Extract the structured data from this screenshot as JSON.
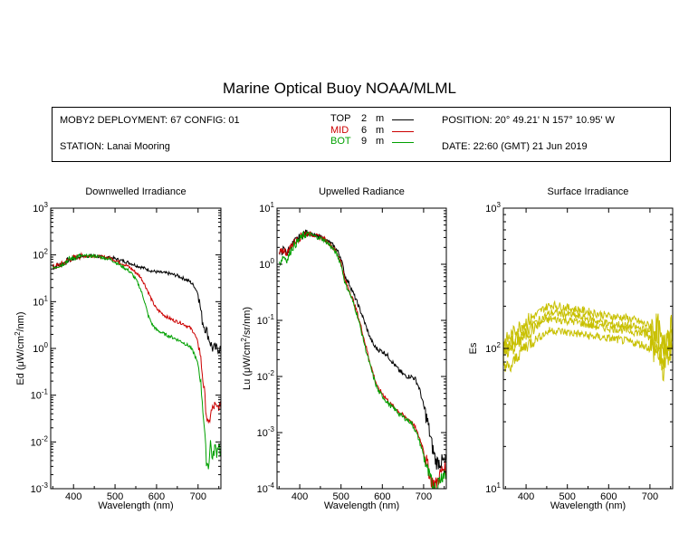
{
  "title": "Marine Optical Buoy NOAA/MLML",
  "info": {
    "deployment": "MOBY2 DEPLOYMENT: 67 CONFIG: 01",
    "station": "STATION: Lanai Mooring",
    "position": "POSITION: 20° 49.21' N   157° 10.95' W",
    "date": "DATE: 22:60 (GMT) 21 Jun 2019",
    "legend": [
      {
        "name": "TOP",
        "depth": "2",
        "unit": "m",
        "color": "#000000"
      },
      {
        "name": "MID",
        "depth": "6",
        "unit": "m",
        "color": "#cc0000"
      },
      {
        "name": "BOT",
        "depth": "9",
        "unit": "m",
        "color": "#00a000"
      }
    ]
  },
  "chart_data": [
    {
      "type": "line",
      "title": "Downwelled Irradiance",
      "xlabel": "Wavelength (nm)",
      "ylabel_prefix": "Ed  (μW/cm",
      "ylabel_suffix": "/nm)",
      "xlim": [
        345,
        755
      ],
      "xticks": [
        400,
        500,
        600,
        700
      ],
      "ylog": true,
      "ylim_exp": [
        -3,
        3
      ],
      "ytick_exps": [
        -3,
        -2,
        -1,
        0,
        1,
        2,
        3
      ],
      "series": [
        {
          "color": "#000000",
          "noise": 0.07,
          "x": [
            350,
            370,
            390,
            410,
            430,
            450,
            470,
            490,
            510,
            530,
            550,
            570,
            590,
            610,
            630,
            650,
            670,
            680,
            690,
            700,
            705,
            710,
            715,
            720,
            725,
            730,
            735,
            740,
            745,
            750,
            755
          ],
          "y": [
            55,
            62,
            80,
            92,
            95,
            95,
            90,
            88,
            78,
            70,
            60,
            52,
            45,
            42,
            40,
            36,
            30,
            27,
            22,
            15,
            8,
            4,
            3,
            2.5,
            1.8,
            1.3,
            1.0,
            1.0,
            1.0,
            1.0,
            1.0
          ]
        },
        {
          "color": "#cc0000",
          "noise": 0.07,
          "x": [
            350,
            370,
            390,
            410,
            430,
            450,
            470,
            490,
            510,
            530,
            540,
            550,
            560,
            570,
            580,
            590,
            600,
            620,
            640,
            660,
            680,
            690,
            700,
            705,
            710,
            715,
            720,
            725,
            730,
            735,
            740,
            745,
            750,
            755
          ],
          "y": [
            55,
            62,
            80,
            92,
            95,
            95,
            90,
            85,
            70,
            58,
            50,
            42,
            35,
            25,
            16,
            10,
            7,
            5,
            4,
            3.5,
            2.8,
            2.2,
            1.3,
            0.8,
            0.3,
            0.12,
            0.04,
            0.02,
            0.04,
            0.05,
            0.06,
            0.05,
            0.06,
            0.05
          ]
        },
        {
          "color": "#00a000",
          "noise": 0.07,
          "x": [
            350,
            370,
            390,
            410,
            430,
            450,
            470,
            490,
            510,
            530,
            540,
            550,
            560,
            570,
            580,
            590,
            600,
            620,
            640,
            660,
            680,
            690,
            700,
            705,
            710,
            715,
            720,
            725,
            730,
            735,
            740,
            745,
            750,
            755
          ],
          "y": [
            55,
            62,
            80,
            92,
            95,
            95,
            88,
            80,
            62,
            48,
            40,
            30,
            20,
            11,
            5,
            3.2,
            2.5,
            2.0,
            1.7,
            1.4,
            1.1,
            0.8,
            0.45,
            0.25,
            0.08,
            0.02,
            0.004,
            0.003,
            0.01,
            0.004,
            0.008,
            0.006,
            0.01,
            0.005
          ]
        }
      ]
    },
    {
      "type": "line",
      "title": "Upwelled Radiance",
      "xlabel": "Wavelength (nm)",
      "ylabel_prefix": "Lu  (μW/cm",
      "ylabel_suffix": "/sr/nm)",
      "xlim": [
        345,
        755
      ],
      "xticks": [
        400,
        500,
        600,
        700
      ],
      "ylog": true,
      "ylim_exp": [
        -4,
        1
      ],
      "ytick_exps": [
        -4,
        -3,
        -2,
        -1,
        0,
        1
      ],
      "series": [
        {
          "color": "#000000",
          "noise": 0.08,
          "x": [
            350,
            360,
            370,
            380,
            390,
            400,
            410,
            420,
            430,
            440,
            450,
            460,
            470,
            480,
            490,
            500,
            510,
            520,
            530,
            540,
            550,
            560,
            570,
            580,
            590,
            600,
            610,
            620,
            630,
            640,
            650,
            660,
            670,
            680,
            690,
            700,
            710,
            720,
            730,
            740,
            750,
            755
          ],
          "y": [
            1.5,
            1.8,
            1.6,
            2.2,
            2.6,
            3.0,
            3.5,
            3.6,
            3.4,
            3.2,
            3.0,
            2.8,
            2.5,
            2.2,
            1.8,
            1.3,
            0.6,
            0.45,
            0.3,
            0.2,
            0.13,
            0.08,
            0.05,
            0.035,
            0.03,
            0.028,
            0.025,
            0.02,
            0.016,
            0.013,
            0.011,
            0.01,
            0.01,
            0.009,
            0.006,
            0.003,
            0.0015,
            0.0006,
            0.0003,
            0.0003,
            0.0003,
            0.0003
          ]
        },
        {
          "color": "#cc0000",
          "noise": 0.08,
          "x": [
            350,
            360,
            370,
            380,
            390,
            400,
            410,
            420,
            430,
            440,
            450,
            460,
            470,
            480,
            490,
            500,
            510,
            520,
            530,
            540,
            550,
            560,
            570,
            580,
            590,
            600,
            610,
            620,
            630,
            640,
            650,
            660,
            670,
            680,
            690,
            700,
            710,
            720,
            730,
            740,
            750,
            755
          ],
          "y": [
            1.5,
            1.8,
            1.6,
            2.2,
            2.6,
            3.0,
            3.5,
            3.6,
            3.4,
            3.2,
            3.0,
            2.8,
            2.4,
            2.0,
            1.6,
            1.1,
            0.5,
            0.35,
            0.22,
            0.13,
            0.07,
            0.035,
            0.018,
            0.01,
            0.006,
            0.005,
            0.004,
            0.0032,
            0.0028,
            0.0024,
            0.002,
            0.0018,
            0.0016,
            0.0012,
            0.0008,
            0.0005,
            0.00025,
            0.00013,
            0.00012,
            0.00018,
            0.00025,
            0.00018
          ]
        },
        {
          "color": "#00a000",
          "noise": 0.08,
          "x": [
            350,
            360,
            370,
            380,
            390,
            400,
            410,
            420,
            430,
            440,
            450,
            460,
            470,
            480,
            490,
            500,
            510,
            520,
            530,
            540,
            550,
            560,
            570,
            580,
            590,
            600,
            610,
            620,
            630,
            640,
            650,
            660,
            670,
            680,
            690,
            700,
            710,
            720,
            730,
            740,
            750,
            755
          ],
          "y": [
            1.0,
            1.4,
            1.2,
            1.9,
            2.3,
            2.8,
            3.3,
            3.5,
            3.3,
            3.1,
            2.9,
            2.7,
            2.3,
            1.9,
            1.5,
            1.0,
            0.45,
            0.32,
            0.2,
            0.12,
            0.06,
            0.03,
            0.016,
            0.009,
            0.0055,
            0.0045,
            0.0036,
            0.003,
            0.0026,
            0.0022,
            0.0019,
            0.0017,
            0.0015,
            0.0011,
            0.0007,
            0.0004,
            0.0002,
            0.00012,
            0.0001,
            0.00015,
            0.0002,
            0.00015
          ]
        }
      ]
    },
    {
      "type": "line",
      "title": "Surface Irradiance",
      "xlabel": "Wavelength (nm)",
      "ylabel_prefix": "Es",
      "ylabel_suffix": "",
      "xlim": [
        345,
        755
      ],
      "xticks": [
        400,
        500,
        600,
        700
      ],
      "ylog": true,
      "ylim_exp": [
        1,
        3
      ],
      "ytick_exps": [
        1,
        2,
        3
      ],
      "series": [
        {
          "color": "#c8c000",
          "noise": 0.06,
          "x": [
            345,
            360,
            380,
            400,
            420,
            440,
            460,
            480,
            500,
            520,
            540,
            560,
            580,
            600,
            620,
            640,
            660,
            680,
            700,
            720,
            730,
            740,
            750,
            755
          ],
          "y": [
            110,
            120,
            140,
            155,
            170,
            190,
            205,
            200,
            195,
            190,
            185,
            180,
            175,
            170,
            168,
            165,
            160,
            152,
            145,
            140,
            100,
            128,
            135,
            140
          ]
        },
        {
          "color": "#c8c000",
          "noise": 0.06,
          "x": [
            345,
            360,
            380,
            400,
            420,
            440,
            460,
            480,
            500,
            520,
            540,
            560,
            580,
            600,
            620,
            640,
            660,
            680,
            700,
            720,
            730,
            740,
            750,
            755
          ],
          "y": [
            100,
            105,
            120,
            135,
            150,
            165,
            180,
            178,
            175,
            170,
            165,
            160,
            155,
            150,
            148,
            145,
            142,
            138,
            130,
            125,
            85,
            115,
            120,
            128
          ]
        },
        {
          "color": "#c8c000",
          "noise": 0.06,
          "x": [
            345,
            360,
            380,
            400,
            420,
            440,
            460,
            480,
            500,
            520,
            540,
            560,
            580,
            600,
            620,
            640,
            660,
            680,
            700,
            720,
            730,
            740,
            750,
            755
          ],
          "y": [
            90,
            95,
            110,
            125,
            140,
            155,
            162,
            160,
            158,
            155,
            150,
            145,
            142,
            140,
            138,
            135,
            132,
            128,
            120,
            115,
            75,
            105,
            110,
            118
          ]
        },
        {
          "color": "#c8c000",
          "noise": 0.06,
          "x": [
            345,
            360,
            380,
            400,
            420,
            440,
            460,
            480,
            500,
            520,
            540,
            560,
            580,
            600,
            620,
            640,
            660,
            680,
            700,
            720,
            730,
            740,
            750,
            755
          ],
          "y": [
            80,
            70,
            90,
            105,
            115,
            125,
            135,
            133,
            130,
            128,
            125,
            122,
            120,
            118,
            116,
            113,
            110,
            107,
            100,
            95,
            65,
            88,
            92,
            98
          ]
        }
      ]
    }
  ]
}
